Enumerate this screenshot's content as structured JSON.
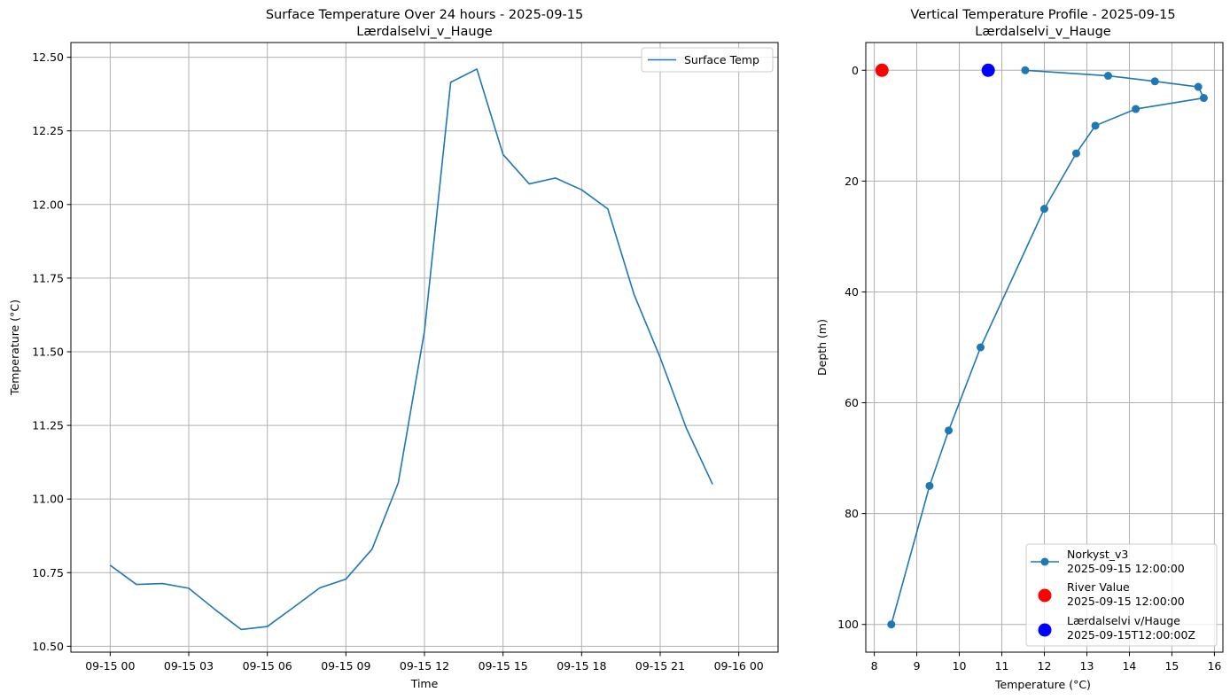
{
  "chart_data": [
    {
      "type": "line",
      "title": "Surface Temperature Over 24 hours - 2025-09-15",
      "subtitle": "Lærdalselvi_v_Hauge",
      "xlabel": "Time",
      "ylabel": "Temperature (°C)",
      "xlim": [
        -1.5,
        25.5
      ],
      "ylim": [
        10.48,
        12.55
      ],
      "grid": true,
      "legend": "top-right",
      "x_ticks": [
        {
          "value": 0,
          "label": "09-15 00"
        },
        {
          "value": 3,
          "label": "09-15 03"
        },
        {
          "value": 6,
          "label": "09-15 06"
        },
        {
          "value": 9,
          "label": "09-15 09"
        },
        {
          "value": 12,
          "label": "09-15 12"
        },
        {
          "value": 15,
          "label": "09-15 15"
        },
        {
          "value": 18,
          "label": "09-15 18"
        },
        {
          "value": 21,
          "label": "09-15 21"
        },
        {
          "value": 24,
          "label": "09-16 00"
        }
      ],
      "y_ticks": [
        {
          "value": 10.5,
          "label": "10.50"
        },
        {
          "value": 10.75,
          "label": "10.75"
        },
        {
          "value": 11.0,
          "label": "11.00"
        },
        {
          "value": 11.25,
          "label": "11.25"
        },
        {
          "value": 11.5,
          "label": "11.50"
        },
        {
          "value": 11.75,
          "label": "11.75"
        },
        {
          "value": 12.0,
          "label": "12.00"
        },
        {
          "value": 12.25,
          "label": "12.25"
        },
        {
          "value": 12.5,
          "label": "12.50"
        }
      ],
      "series": [
        {
          "name": "Surface Temp",
          "color": "#1f77b4",
          "x": [
            0,
            1,
            2,
            3,
            4,
            5,
            6,
            7,
            8,
            9,
            10,
            11,
            12,
            13,
            14,
            15,
            16,
            17,
            18,
            19,
            20,
            21,
            22,
            23
          ],
          "values": [
            10.775,
            10.71,
            10.713,
            10.697,
            10.625,
            10.557,
            10.567,
            10.632,
            10.698,
            10.728,
            10.83,
            11.055,
            11.57,
            12.415,
            12.46,
            12.17,
            12.07,
            12.09,
            12.05,
            11.985,
            11.695,
            11.48,
            11.24,
            11.05
          ]
        }
      ]
    },
    {
      "type": "scatter",
      "title": "Vertical Temperature Profile - 2025-09-15",
      "subtitle": "Lærdalselvi_v_Hauge",
      "xlabel": "Temperature (°C)",
      "ylabel": "Depth (m)",
      "xlim": [
        7.8,
        16.2
      ],
      "ylim": [
        105,
        -5
      ],
      "y_inverted": true,
      "grid": true,
      "legend": "bottom-right",
      "x_ticks": [
        {
          "value": 8,
          "label": "8"
        },
        {
          "value": 9,
          "label": "9"
        },
        {
          "value": 10,
          "label": "10"
        },
        {
          "value": 11,
          "label": "11"
        },
        {
          "value": 12,
          "label": "12"
        },
        {
          "value": 13,
          "label": "13"
        },
        {
          "value": 14,
          "label": "14"
        },
        {
          "value": 15,
          "label": "15"
        },
        {
          "value": 16,
          "label": "16"
        }
      ],
      "y_ticks": [
        {
          "value": 0,
          "label": "0"
        },
        {
          "value": 20,
          "label": "20"
        },
        {
          "value": 40,
          "label": "40"
        },
        {
          "value": 60,
          "label": "60"
        },
        {
          "value": 80,
          "label": "80"
        },
        {
          "value": 100,
          "label": "100"
        }
      ],
      "series": [
        {
          "name": "Norkyst_v3",
          "name_line2": "2025-09-15 12:00:00",
          "color": "#1f77b4",
          "style": "line-marker",
          "x": [
            11.55,
            13.5,
            14.6,
            15.62,
            15.75,
            14.15,
            13.2,
            12.75,
            12.0,
            10.5,
            9.75,
            9.3,
            8.4
          ],
          "y": [
            0,
            1,
            2,
            3,
            5,
            7,
            10,
            15,
            25,
            50,
            65,
            75,
            100
          ]
        },
        {
          "name": "River Value",
          "name_line2": "2025-09-15 12:00:00",
          "color": "#ff0000",
          "style": "big-marker",
          "x": [
            8.18
          ],
          "y": [
            0
          ]
        },
        {
          "name": "Lærdalselvi v/Hauge",
          "name_line2": "2025-09-15T12:00:00Z",
          "color": "#0000ff",
          "style": "big-marker",
          "x": [
            10.68
          ],
          "y": [
            0
          ]
        }
      ]
    }
  ]
}
